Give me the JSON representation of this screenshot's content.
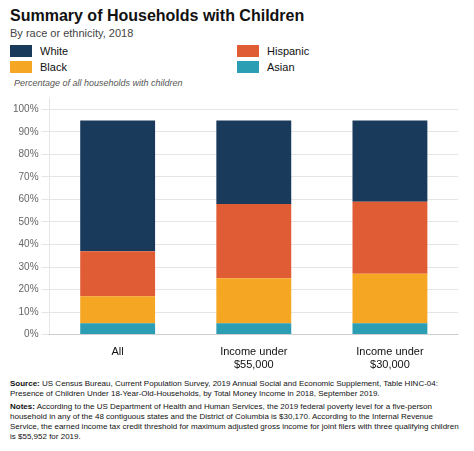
{
  "chart_data": {
    "type": "bar",
    "title": "Summary of Households with Children",
    "subtitle": "By race or ethnicity, 2018",
    "ylabel": "Percentage of all households with children",
    "categories": [
      "All",
      "Income under\n$55,000",
      "Income under\n$30,000"
    ],
    "series": [
      {
        "name": "Asian",
        "color": "#2b9eb3",
        "values": [
          5,
          5,
          5
        ]
      },
      {
        "name": "Black",
        "color": "#f5a623",
        "values": [
          12,
          20,
          22
        ]
      },
      {
        "name": "Hispanic",
        "color": "#e05c35",
        "values": [
          20,
          33,
          32
        ]
      },
      {
        "name": "White",
        "color": "#1a3a5c",
        "values": [
          58,
          37,
          36
        ]
      }
    ],
    "stacked": true,
    "ylim": [
      0,
      105
    ],
    "yticks": [
      {
        "value": 0,
        "label": "0%"
      },
      {
        "value": 10,
        "label": "10%"
      },
      {
        "value": 20,
        "label": "20%"
      },
      {
        "value": 30,
        "label": "30%"
      },
      {
        "value": 40,
        "label": "40%"
      },
      {
        "value": 50,
        "label": "50%"
      },
      {
        "value": 60,
        "label": "60%"
      },
      {
        "value": 70,
        "label": "70%"
      },
      {
        "value": 80,
        "label": "80%"
      },
      {
        "value": 90,
        "label": "90%"
      },
      {
        "value": 100,
        "label": "100%"
      }
    ],
    "grid": true,
    "legend": "top",
    "annotations": [
      {
        "label": "Source:",
        "text": "US Census Bureau, Current Population Survey, 2019 Annual Social and Economic Supplement, Table HINC-04: Presence of Children Under 18-Year-Old-Households, by Total Money Income in 2018, September 2019."
      },
      {
        "label": "Notes:",
        "text": "According to the US Department of Health and Human Services, the 2019 federal poverty level for a five-person household in any of the 48 contiguous states and the District of Columbia is $30,170. According to the Internal Revenue Service, the earned income tax credit threshold for maximum adjusted gross income for joint filers with three qualifying children is $55,952 for 2019."
      }
    ]
  }
}
